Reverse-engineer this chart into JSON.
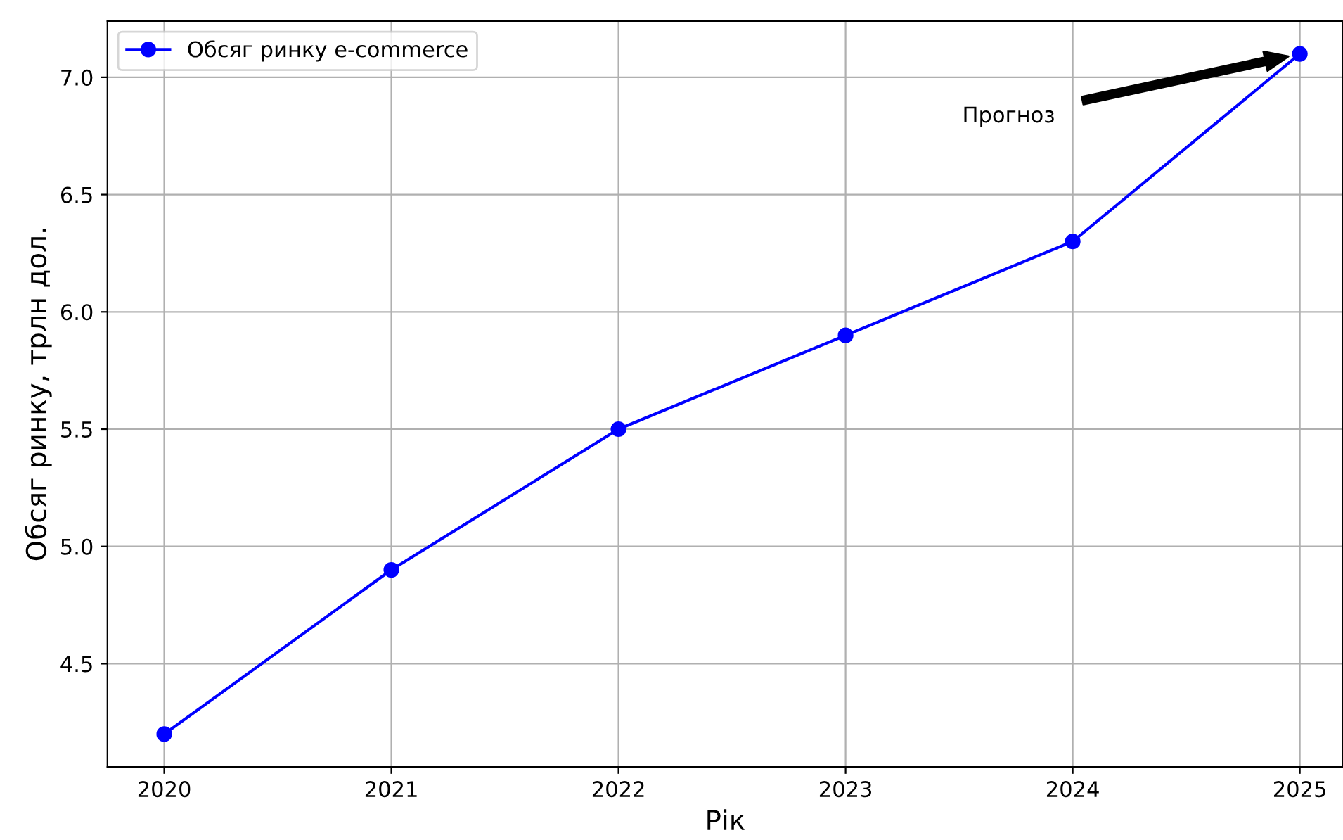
{
  "chart_data": {
    "type": "line",
    "xlabel": "Рік",
    "ylabel": "Обсяг ринку, трлн дол.",
    "x": [
      2020,
      2021,
      2022,
      2023,
      2024,
      2025
    ],
    "series": [
      {
        "name": "Обсяг ринку e-commerce",
        "color": "#0000ff",
        "values": [
          4.2,
          4.9,
          5.5,
          5.9,
          6.3,
          7.1
        ]
      }
    ],
    "xlim": [
      2019.75,
      2025.19
    ],
    "xticks": [
      2020,
      2021,
      2022,
      2023,
      2024,
      2025
    ],
    "ylim": [
      4.06,
      7.24
    ],
    "yticks": [
      4.5,
      {
        "value": 5,
        "label": "5.0"
      },
      5.5,
      {
        "value": 6,
        "label": "6.0"
      },
      6.5,
      {
        "value": 7,
        "label": "7.0"
      }
    ],
    "annotations": [
      "Прогноз"
    ],
    "grid": true,
    "legend": "top left",
    "marker": "circle",
    "line_style": "solid"
  }
}
